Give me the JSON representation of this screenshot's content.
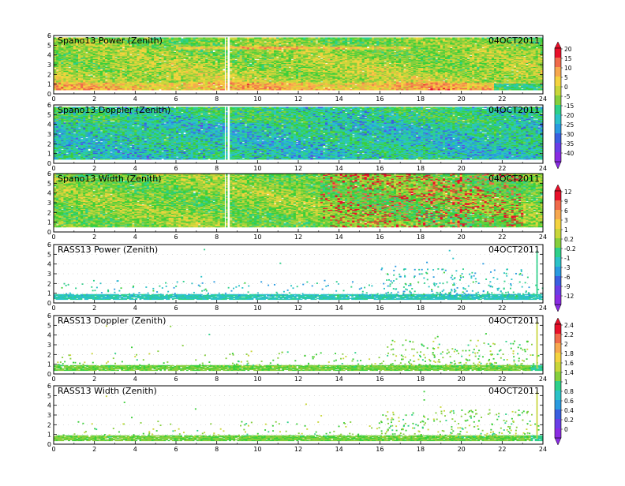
{
  "chart_data": {
    "type": "heatmap",
    "date": "04OCT2011",
    "x_range": [
      0,
      24
    ],
    "x_ticks": [
      "0",
      "2",
      "4",
      "6",
      "8",
      "10",
      "12",
      "14",
      "16",
      "18",
      "20",
      "22",
      "24"
    ],
    "y_range": [
      0,
      6
    ],
    "y_ticks": [
      "0",
      "1",
      "2",
      "3",
      "4",
      "5",
      "6"
    ],
    "panels": [
      {
        "title": "Spano13 Power (Zenith)",
        "kind": "spano",
        "scale": "power_spano",
        "base": 0.4,
        "top": 5.7,
        "mean": 0.62,
        "layer": 4.7
      },
      {
        "title": "Spano13 Doppler (Zenith)",
        "kind": "spano",
        "scale": "doppler",
        "base": 0.4,
        "top": 5.7,
        "mean": 0.4
      },
      {
        "title": "Spano13 Width (Zenith)",
        "kind": "spano",
        "scale": "width",
        "base": 0.5,
        "top": 5.9,
        "mean": 0.58
      },
      {
        "title": "RASS13 Power (Zenith)",
        "kind": "rass",
        "scale": "power_rass",
        "mean": 0.35
      },
      {
        "title": "RASS13 Doppler (Zenith)",
        "kind": "rass",
        "scale": "doppler_rass",
        "mean": 0.55
      },
      {
        "title": "RASS13 Width (Zenith)",
        "kind": "rass",
        "scale": "width_rass",
        "mean": 0.55
      }
    ],
    "gap_hours": [
      8.45,
      8.55
    ],
    "colorbars": [
      {
        "labels": [
          "20",
          "15",
          "10",
          "5",
          "0",
          "-5",
          "-15",
          "-20",
          "-25",
          "-30",
          "-35",
          "-40"
        ]
      },
      {
        "labels": [
          "12",
          "9",
          "6",
          "3",
          "1",
          "0.2",
          "-0.2",
          "-1",
          "-3",
          "-6",
          "-9",
          "-12"
        ]
      },
      {
        "labels": [
          "2.4",
          "2.2",
          "2",
          "1.8",
          "1.6",
          "1.4",
          "1",
          "0.8",
          "0.6",
          "0.4",
          "0.2",
          "0"
        ]
      }
    ],
    "palette": [
      "#e8102a",
      "#f06a4a",
      "#f7a84e",
      "#f4d33f",
      "#c9d63a",
      "#86cf3d",
      "#3ccf3a",
      "#2ed08a",
      "#2bc2c8",
      "#2a9ae0",
      "#3a5fe0",
      "#6a3ee6",
      "#8a2be2"
    ]
  }
}
